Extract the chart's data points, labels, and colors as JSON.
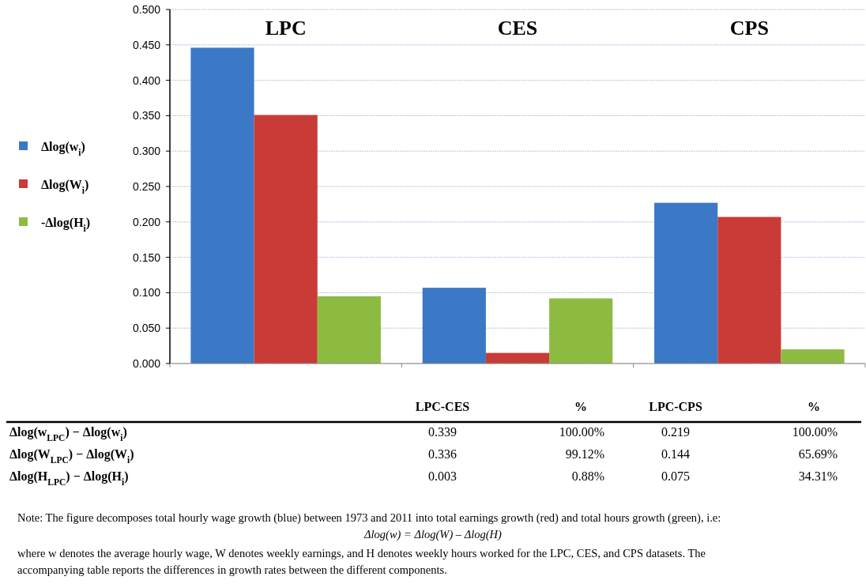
{
  "chart_data": {
    "type": "bar",
    "categories": [
      "LPC",
      "CES",
      "CPS"
    ],
    "series": [
      {
        "name": "Δlog(w$_{i}$)",
        "color": "#3b78c6",
        "values": [
          0.446,
          0.107,
          0.227
        ]
      },
      {
        "name": "Δlog(W$_{i}$)",
        "color": "#c93b37",
        "values": [
          0.351,
          0.015,
          0.207
        ]
      },
      {
        "name": "-Δlog(H$_{i}$)",
        "color": "#8dbb42",
        "values": [
          0.095,
          0.092,
          0.02
        ]
      }
    ],
    "ylim": [
      0,
      0.5
    ],
    "yticks": [
      {
        "value": 0,
        "label": "0.000"
      },
      {
        "value": 0.05,
        "label": "0.050"
      },
      {
        "value": 0.1,
        "label": "0.100"
      },
      {
        "value": 0.15,
        "label": "0.150"
      },
      {
        "value": 0.2,
        "label": "0.200"
      },
      {
        "value": 0.25,
        "label": "0.250"
      },
      {
        "value": 0.3,
        "label": "0.300"
      },
      {
        "value": 0.35,
        "label": "0.350"
      },
      {
        "value": 0.4,
        "label": "0.400"
      },
      {
        "value": 0.45,
        "label": "0.450"
      },
      {
        "value": 0.5,
        "label": "0.500"
      }
    ],
    "grid": "y",
    "legend": "left",
    "annotations": [
      "LPC-CES",
      "%",
      "LPC-CPS",
      "%",
      "Δlog(w$_{LPC}$)  − Δlog(w$_{i}$)",
      "0.339",
      "100.00%",
      "0.219",
      "100.00%",
      "Δlog(W$_{LPC}$) − Δlog(W$_{i}$)",
      "0.336",
      "99.12%",
      "0.144",
      "65.69%",
      "Δlog(H$_{LPC}$)  − Δlog(H$_{i}$)",
      "0.003",
      "0.88%",
      "0.075",
      "34.31%",
      "Note: The figure decomposes total hourly wage growth (blue) between 1973 and 2011 into total earnings growth (red) and total hours growth (green), i.e:",
      "Δlog(w) = Δlog(W) – Δlog(H)",
      "where w denotes the average hourly wage, W denotes weekly earnings, and H denotes weekly hours worked for the LPC, CES, and CPS datasets. The",
      "accompanying table reports the differences in growth rates between the different components."
    ]
  }
}
